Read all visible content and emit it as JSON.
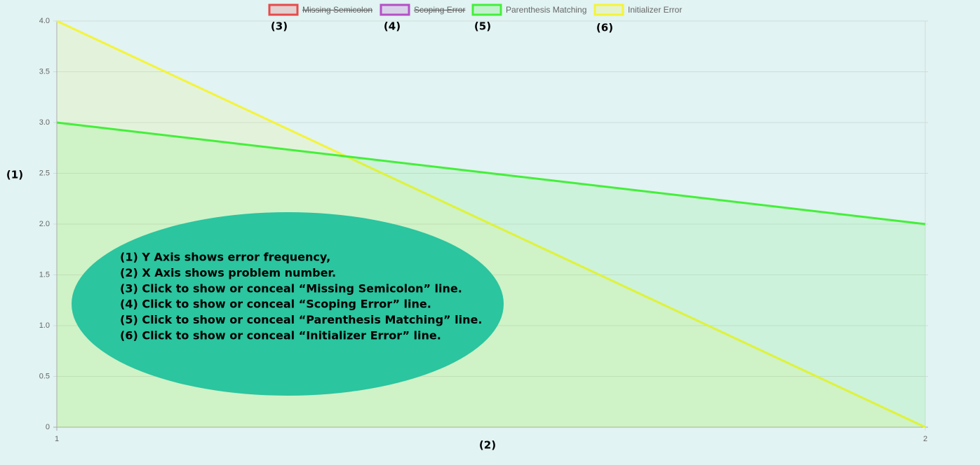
{
  "chart_data": {
    "type": "line",
    "x": [
      1,
      2
    ],
    "xlim": [
      1,
      2
    ],
    "xticks": [
      1,
      2
    ],
    "ylim": [
      0,
      4
    ],
    "yticks": [
      0,
      0.5,
      {
        "value": 1,
        "label": "1.0"
      },
      1.5,
      {
        "value": 2,
        "label": "2.0"
      },
      2.5,
      {
        "value": 3,
        "label": "3.0"
      },
      3.5,
      {
        "value": 4,
        "label": "4.0"
      }
    ],
    "grid": true,
    "legend": "top",
    "series": [
      {
        "name": "Missing Semicolon",
        "color": "#e84a4a",
        "hidden": true,
        "values": [
          null,
          null
        ]
      },
      {
        "name": "Scoping Error",
        "color": "#b54fc6",
        "hidden": true,
        "values": [
          null,
          null
        ]
      },
      {
        "name": "Parenthesis Matching",
        "color": "#44ef3a",
        "hidden": false,
        "values": [
          3,
          2
        ]
      },
      {
        "name": "Initializer Error",
        "color": "#f4f43a",
        "hidden": false,
        "values": [
          4,
          0
        ]
      }
    ],
    "annotations": {
      "markers": [
        "(1)",
        "(2)",
        "(3)",
        "(4)",
        "(5)",
        "(6)"
      ],
      "callout": [
        "(1) Y Axis shows error frequency,",
        "(2) X Axis shows problem number.",
        "(3) Click to show or conceal “Missing Semicolon” line.",
        "(4) Click to show or conceal “Scoping Error” line.",
        "(5) Click to show or conceal “Parenthesis Matching” line.",
        "(6) Click to show or conceal “Initializer Error” line."
      ]
    }
  }
}
